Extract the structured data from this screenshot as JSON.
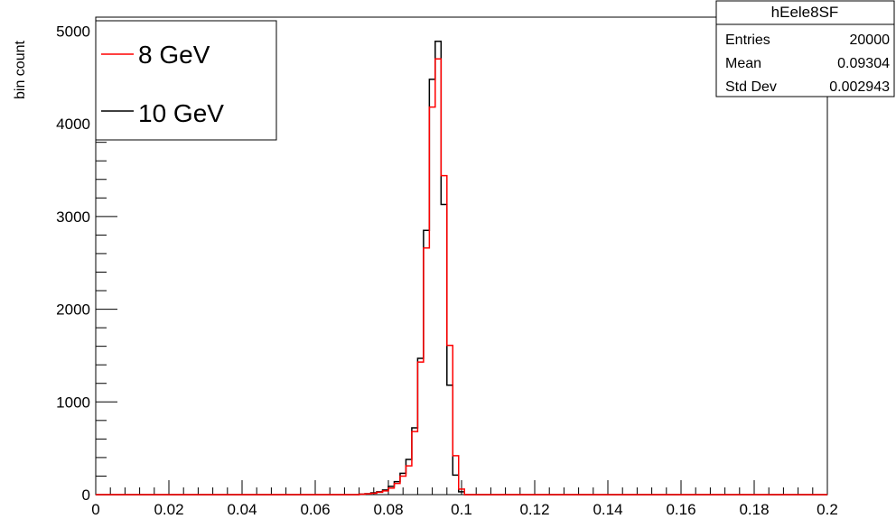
{
  "chart_data": {
    "type": "histogram",
    "ylabel": "bin count",
    "xlim": [
      0,
      0.2
    ],
    "ylim": [
      0,
      5150
    ],
    "bin_width": 0.0016,
    "x_ticks": [
      "0",
      "0.02",
      "0.04",
      "0.06",
      "0.08",
      "0.1",
      "0.12",
      "0.14",
      "0.16",
      "0.18",
      "0.2"
    ],
    "y_ticks": [
      "0",
      "1000",
      "2000",
      "3000",
      "4000",
      "5000"
    ],
    "legend_position": "top-left",
    "series": [
      {
        "name": "8 GeV",
        "color": "#ff0000",
        "bin_starts": [
          0.072,
          0.0736,
          0.0752,
          0.0768,
          0.0784,
          0.08,
          0.0816,
          0.0832,
          0.0848,
          0.0864,
          0.088,
          0.0896,
          0.0912,
          0.0928,
          0.0944,
          0.096,
          0.0976,
          0.0992
        ],
        "values": [
          5,
          8,
          15,
          25,
          40,
          70,
          120,
          200,
          310,
          680,
          1430,
          2660,
          4180,
          4700,
          3440,
          1610,
          420,
          60
        ]
      },
      {
        "name": "10 GeV",
        "color": "#000000",
        "bin_starts": [
          0.072,
          0.0736,
          0.0752,
          0.0768,
          0.0784,
          0.08,
          0.0816,
          0.0832,
          0.0848,
          0.0864,
          0.088,
          0.0896,
          0.0912,
          0.0928,
          0.0944,
          0.096,
          0.0976,
          0.0992
        ],
        "values": [
          5,
          10,
          20,
          30,
          50,
          90,
          140,
          230,
          380,
          720,
          1470,
          2850,
          4480,
          4890,
          3130,
          1180,
          210,
          30
        ]
      }
    ]
  },
  "stats_box": {
    "title": "hEele8SF",
    "rows": [
      {
        "label": "Entries",
        "value": "20000"
      },
      {
        "label": "Mean",
        "value": "0.09304"
      },
      {
        "label": "Std Dev",
        "value": "0.002943"
      }
    ]
  },
  "colors": {
    "frame": "#000000",
    "background": "#ffffff"
  }
}
